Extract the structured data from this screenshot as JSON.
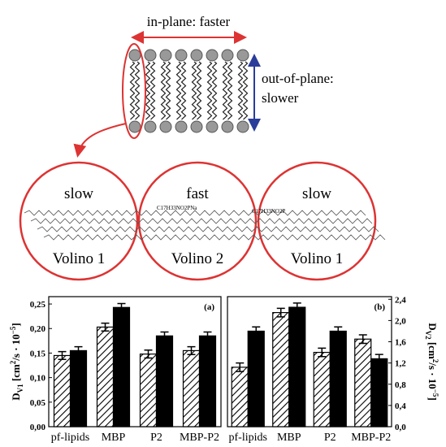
{
  "diagram": {
    "top_label": "in-plane: faster",
    "side_label": [
      "out-of-plane:",
      "slower"
    ],
    "circles": [
      {
        "rate": "slow",
        "model": "Volino 1"
      },
      {
        "rate": "fast",
        "model": "Volino 2"
      },
      {
        "rate": "slow",
        "model": "Volino 1"
      }
    ],
    "formulas": [
      "C17H33NO2PNa",
      "C17H33NO2P"
    ]
  },
  "chart_data": [
    {
      "type": "bar",
      "panel": "(a)",
      "axis_side": "left",
      "ylabel": [
        "D",
        "V1",
        " [cm",
        "2",
        "/s · 10",
        "−5",
        "]"
      ],
      "categories": [
        "pf-lipids",
        "MBP",
        "P2",
        "MBP-P2"
      ],
      "series": [
        {
          "color": "#000000",
          "pattern": "hatch",
          "values": [
            0.145,
            0.203,
            0.148,
            0.155
          ],
          "errors": [
            0.008,
            0.008,
            0.008,
            0.008
          ]
        },
        {
          "color": "#000000",
          "pattern": "solid",
          "values": [
            0.155,
            0.243,
            0.185,
            0.185
          ],
          "errors": [
            0.008,
            0.008,
            0.008,
            0.008
          ]
        }
      ],
      "ylim": [
        0,
        0.265
      ],
      "yticks": [
        {
          "value": 0,
          "label": "0,00"
        },
        {
          "value": 0.05,
          "label": "0,05"
        },
        {
          "value": 0.1,
          "label": "0,10"
        },
        {
          "value": 0.15,
          "label": "0,15"
        },
        {
          "value": 0.2,
          "label": "0,20"
        },
        {
          "value": 0.25,
          "label": "0,25"
        }
      ]
    },
    {
      "type": "bar",
      "panel": "(b)",
      "axis_side": "right",
      "ylabel": [
        "D",
        "V2",
        " [cm",
        "2",
        "/s · 10",
        "−5",
        "]"
      ],
      "categories": [
        "pf-lipids",
        "MBP",
        "P2",
        "MBP-P2"
      ],
      "series": [
        {
          "color": "#000000",
          "pattern": "hatch",
          "values": [
            1.12,
            2.15,
            1.4,
            1.65
          ],
          "errors": [
            0.08,
            0.08,
            0.08,
            0.08
          ]
        },
        {
          "color": "#000000",
          "pattern": "solid",
          "values": [
            1.8,
            2.25,
            1.8,
            1.28
          ],
          "errors": [
            0.08,
            0.08,
            0.08,
            0.08
          ]
        }
      ],
      "ylim": [
        0,
        2.45
      ],
      "yticks": [
        {
          "value": 0,
          "label": "0,0"
        },
        {
          "value": 0.4,
          "label": "0,4"
        },
        {
          "value": 0.8,
          "label": "0,8"
        },
        {
          "value": 1.2,
          "label": "1,2"
        },
        {
          "value": 1.6,
          "label": "1,6"
        },
        {
          "value": 2.0,
          "label": "2,0"
        },
        {
          "value": 2.4,
          "label": "2,4"
        }
      ]
    }
  ]
}
